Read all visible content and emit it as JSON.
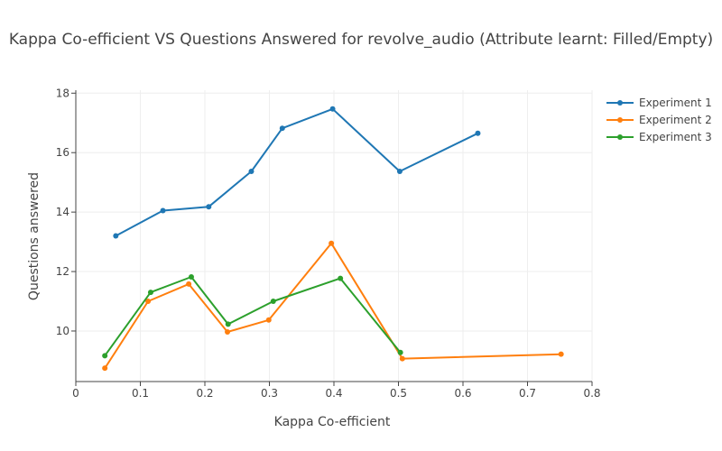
{
  "chart_data": {
    "type": "line",
    "title": "Kappa Co-efficient VS Questions Answered for revolve_audio (Attribute learnt: Filled/Empty)",
    "xlabel": "Kappa Co-efficient",
    "ylabel": "Questions answered",
    "xlim": [
      0,
      0.8
    ],
    "ylim": [
      8.3,
      18.1
    ],
    "xticks": [
      0,
      0.1,
      0.2,
      0.3,
      0.4,
      0.5,
      0.6,
      0.7,
      0.8
    ],
    "yticks": [
      10,
      12,
      14,
      16,
      18
    ],
    "grid": true,
    "legend_position": "top-right",
    "series": [
      {
        "name": "Experiment 1",
        "color": "#1f77b4",
        "x": [
          0.062,
          0.135,
          0.206,
          0.272,
          0.32,
          0.398,
          0.502,
          0.623
        ],
        "y": [
          13.2,
          14.05,
          14.18,
          15.37,
          16.82,
          17.47,
          15.37,
          16.65
        ]
      },
      {
        "name": "Experiment 2",
        "color": "#ff7f0e",
        "x": [
          0.045,
          0.112,
          0.175,
          0.235,
          0.299,
          0.396,
          0.506,
          0.752
        ],
        "y": [
          8.75,
          11.0,
          11.58,
          9.97,
          10.37,
          12.95,
          9.07,
          9.22
        ]
      },
      {
        "name": "Experiment 3",
        "color": "#2ca02c",
        "x": [
          0.045,
          0.116,
          0.179,
          0.236,
          0.306,
          0.41,
          0.503
        ],
        "y": [
          9.17,
          11.3,
          11.82,
          10.23,
          11.0,
          11.77,
          9.28
        ]
      }
    ]
  }
}
